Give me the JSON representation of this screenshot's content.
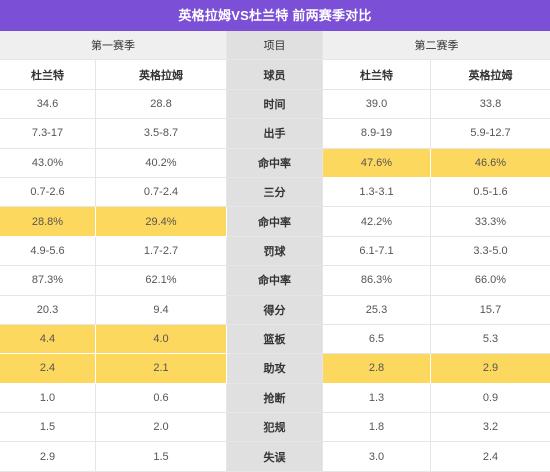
{
  "colors": {
    "title_bar": "#7b4fd6",
    "highlight": "#fdd85e",
    "group_header_bg": "#efefef",
    "item_column_bg": "#e0e0e0"
  },
  "chart_data": {
    "type": "table",
    "title": "英格拉姆VS杜兰特 前两赛季对比",
    "group_headers": {
      "season1": "第一赛季",
      "item": "项目",
      "season2": "第二赛季"
    },
    "column_headers": [
      "杜兰特",
      "英格拉姆",
      "球员",
      "杜兰特",
      "英格拉姆"
    ],
    "rows": [
      {
        "item": "时间",
        "cells": [
          "34.6",
          "28.8",
          "39.0",
          "33.8"
        ],
        "highlight": [
          false,
          false,
          false,
          false
        ]
      },
      {
        "item": "出手",
        "cells": [
          "7.3-17",
          "3.5-8.7",
          "8.9-19",
          "5.9-12.7"
        ],
        "highlight": [
          false,
          false,
          false,
          false
        ]
      },
      {
        "item": "命中率",
        "cells": [
          "43.0%",
          "40.2%",
          "47.6%",
          "46.6%"
        ],
        "highlight": [
          false,
          false,
          true,
          true
        ]
      },
      {
        "item": "三分",
        "cells": [
          "0.7-2.6",
          "0.7-2.4",
          "1.3-3.1",
          "0.5-1.6"
        ],
        "highlight": [
          false,
          false,
          false,
          false
        ]
      },
      {
        "item": "命中率",
        "cells": [
          "28.8%",
          "29.4%",
          "42.2%",
          "33.3%"
        ],
        "highlight": [
          true,
          true,
          false,
          false
        ]
      },
      {
        "item": "罚球",
        "cells": [
          "4.9-5.6",
          "1.7-2.7",
          "6.1-7.1",
          "3.3-5.0"
        ],
        "highlight": [
          false,
          false,
          false,
          false
        ]
      },
      {
        "item": "命中率",
        "cells": [
          "87.3%",
          "62.1%",
          "86.3%",
          "66.0%"
        ],
        "highlight": [
          false,
          false,
          false,
          false
        ]
      },
      {
        "item": "得分",
        "cells": [
          "20.3",
          "9.4",
          "25.3",
          "15.7"
        ],
        "highlight": [
          false,
          false,
          false,
          false
        ]
      },
      {
        "item": "篮板",
        "cells": [
          "4.4",
          "4.0",
          "6.5",
          "5.3"
        ],
        "highlight": [
          true,
          true,
          false,
          false
        ]
      },
      {
        "item": "助攻",
        "cells": [
          "2.4",
          "2.1",
          "2.8",
          "2.9"
        ],
        "highlight": [
          true,
          true,
          true,
          true
        ]
      },
      {
        "item": "抢断",
        "cells": [
          "1.0",
          "0.6",
          "1.3",
          "0.9"
        ],
        "highlight": [
          false,
          false,
          false,
          false
        ]
      },
      {
        "item": "犯规",
        "cells": [
          "1.5",
          "2.0",
          "1.8",
          "3.2"
        ],
        "highlight": [
          false,
          false,
          false,
          false
        ]
      },
      {
        "item": "失误",
        "cells": [
          "2.9",
          "1.5",
          "3.0",
          "2.4"
        ],
        "highlight": [
          false,
          false,
          false,
          false
        ]
      }
    ]
  }
}
